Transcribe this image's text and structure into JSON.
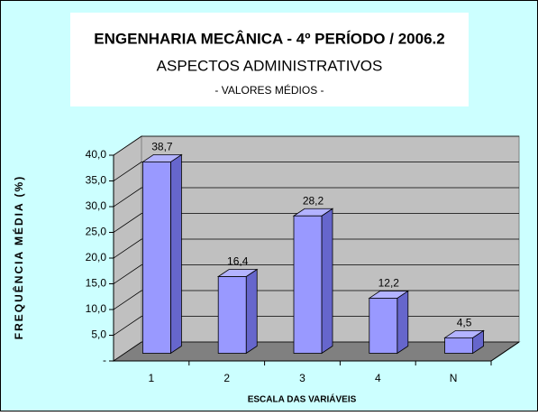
{
  "chart_data": {
    "type": "bar3d",
    "title": "ENGENHARIA MECÂNICA - 4º PERÍODO / 2006.2",
    "subtitle": "ASPECTOS ADMINISTRATIVOS",
    "note": "- VALORES MÉDIOS -",
    "x_label": "ESCALA DAS VARIÁVEIS",
    "y_label": "FREQUÊNCIA MÉDIA (%)",
    "categories": [
      "1",
      "2",
      "3",
      "4",
      "N"
    ],
    "values": [
      38.7,
      16.4,
      28.2,
      12.2,
      4.5
    ],
    "value_labels": [
      "38,7",
      "16,4",
      "28,2",
      "12,2",
      "4,5"
    ],
    "color": "#9999ff",
    "ylim": [
      0,
      40
    ],
    "yticks": [
      {
        "value": 0,
        "label": "-"
      },
      {
        "value": 5,
        "label": "5,0"
      },
      {
        "value": 10,
        "label": "10,0"
      },
      {
        "value": 15,
        "label": "15,0"
      },
      {
        "value": 20,
        "label": "20,0"
      },
      {
        "value": 25,
        "label": "25,0"
      },
      {
        "value": 30,
        "label": "30,0"
      },
      {
        "value": 35,
        "label": "35,0"
      },
      {
        "value": 40,
        "label": "40,0"
      }
    ],
    "grid": true
  }
}
